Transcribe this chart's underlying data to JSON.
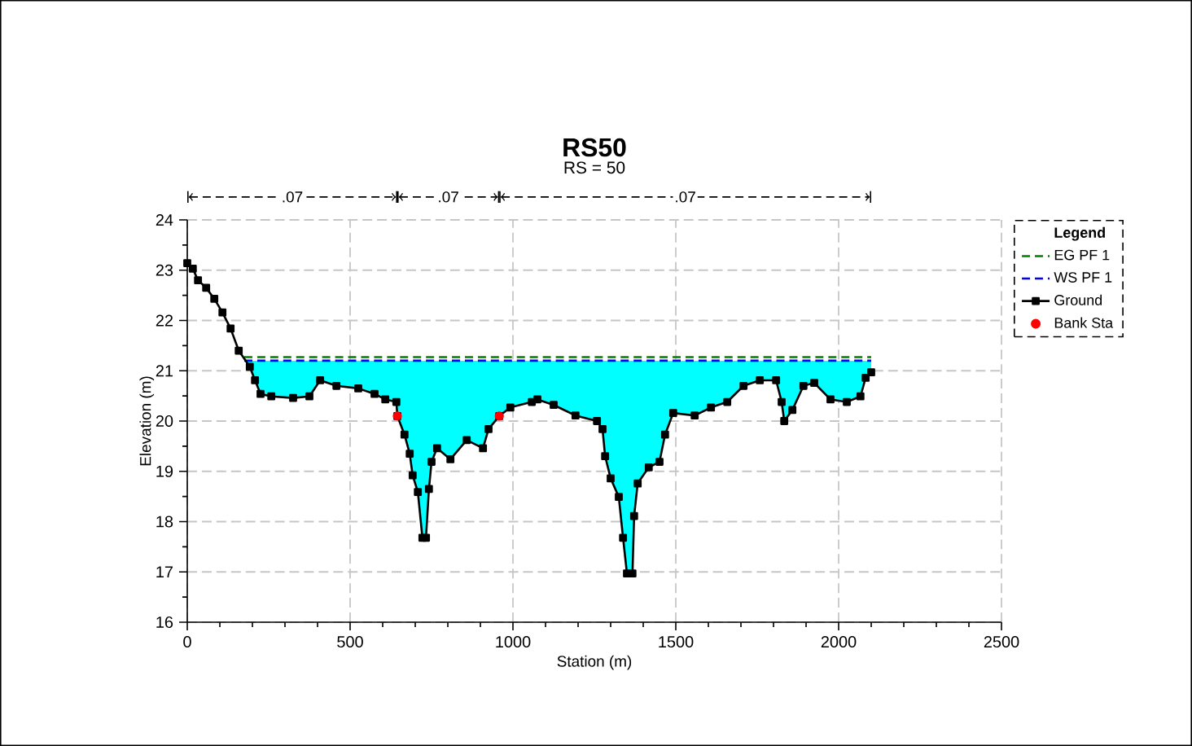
{
  "chart_data": {
    "type": "line",
    "title": "RS50",
    "xlabel": "Station (m)",
    "ylabel": "Elevation (m)",
    "legend_title": "Legend",
    "annotations": [
      ".07",
      ".07",
      ".07",
      "RS = 50"
    ],
    "xlim": [
      0,
      2500
    ],
    "ylim": [
      16,
      24
    ],
    "xticks": [
      0,
      500,
      1000,
      1500,
      2000,
      2500
    ],
    "yticks": [
      16,
      17,
      18,
      19,
      20,
      21,
      22,
      23,
      24
    ],
    "grid": true,
    "legend": "right",
    "series": [
      {
        "name": "EG  PF  1",
        "color": "#008000",
        "line_style": "dashed",
        "x": [
          175,
          2100
        ],
        "values": [
          21.27,
          21.27
        ]
      },
      {
        "name": "WS PF 1",
        "color": "#0000ff",
        "line_style": "dashed",
        "x": [
          175,
          192,
          208,
          225,
          258,
          325,
          375,
          408,
          458,
          525,
          575,
          608,
          642,
          645,
          667,
          683,
          692,
          708,
          722,
          733,
          742,
          750,
          767,
          808,
          858,
          908,
          925,
          958,
          992,
          1058,
          1075,
          1125,
          1192,
          1258,
          1275,
          1283,
          1300,
          1325,
          1338,
          1350,
          1367,
          1372,
          1383,
          1417,
          1450,
          1467,
          1492,
          1558,
          1608,
          1658,
          1708,
          1758,
          1808,
          1825,
          1833,
          1858,
          1892,
          1925,
          1975,
          2025,
          2067,
          2083,
          2100
        ],
        "values": [
          21.2,
          21.2,
          21.2,
          21.2,
          21.2,
          21.2,
          21.2,
          21.2,
          21.2,
          21.2,
          21.2,
          21.2,
          21.2,
          21.2,
          21.2,
          21.2,
          21.2,
          21.2,
          21.2,
          21.2,
          21.2,
          21.2,
          21.2,
          21.2,
          21.2,
          21.2,
          21.2,
          21.2,
          21.2,
          21.2,
          21.2,
          21.2,
          21.2,
          21.2,
          21.2,
          21.2,
          21.2,
          21.2,
          21.2,
          21.2,
          21.2,
          21.2,
          21.2,
          21.2,
          21.2,
          21.2,
          21.2,
          21.2,
          21.2,
          21.2,
          21.2,
          21.2,
          21.2,
          21.2,
          21.2,
          21.2,
          21.2,
          21.2,
          21.2,
          21.2,
          21.2,
          21.2,
          21.2
        ],
        "upper": [
          21.2,
          21.2,
          21.2,
          21.2,
          21.2,
          21.2,
          21.2,
          21.2,
          21.2,
          21.2,
          21.2,
          21.2,
          21.2,
          21.2,
          21.2,
          21.2,
          21.2,
          21.2,
          21.2,
          21.2,
          21.2,
          21.2,
          21.2,
          21.2,
          21.2,
          21.2,
          21.2,
          21.2,
          21.2,
          21.2,
          21.2,
          21.2,
          21.2,
          21.2,
          21.2,
          21.2,
          21.2,
          21.2,
          21.2,
          21.2,
          21.2,
          21.2,
          21.2,
          21.2,
          21.2,
          21.2,
          21.2,
          21.2,
          21.2,
          21.2,
          21.2,
          21.2,
          21.2,
          21.2,
          21.2,
          21.2,
          21.2,
          21.2,
          21.2,
          21.2,
          21.2,
          21.2,
          21.2
        ],
        "lower": [
          21.2,
          21.08,
          20.81,
          20.54,
          20.49,
          20.46,
          20.49,
          20.81,
          20.7,
          20.65,
          20.54,
          20.43,
          20.38,
          20.1,
          19.73,
          19.35,
          18.92,
          18.59,
          17.68,
          17.68,
          18.65,
          19.19,
          19.46,
          19.24,
          19.62,
          19.46,
          19.84,
          20.1,
          20.27,
          20.38,
          20.43,
          20.32,
          20.11,
          20.0,
          19.84,
          19.3,
          18.86,
          18.49,
          17.68,
          16.97,
          16.97,
          18.11,
          18.76,
          19.08,
          19.19,
          19.73,
          20.16,
          20.11,
          20.27,
          20.38,
          20.7,
          20.81,
          20.81,
          20.38,
          20.0,
          20.22,
          20.7,
          20.76,
          20.43,
          20.38,
          20.49,
          20.86,
          20.97
        ]
      },
      {
        "name": "Ground",
        "color": "#000000",
        "marker": "square",
        "line_style": "solid",
        "x": [
          0,
          17,
          33,
          58,
          83,
          108,
          133,
          158,
          192,
          208,
          225,
          258,
          325,
          375,
          408,
          458,
          525,
          575,
          608,
          642,
          645,
          667,
          683,
          692,
          708,
          722,
          733,
          742,
          750,
          767,
          808,
          858,
          908,
          925,
          958,
          992,
          1058,
          1075,
          1125,
          1192,
          1258,
          1275,
          1283,
          1300,
          1325,
          1338,
          1350,
          1367,
          1372,
          1383,
          1417,
          1450,
          1467,
          1492,
          1558,
          1608,
          1658,
          1708,
          1758,
          1808,
          1825,
          1833,
          1858,
          1892,
          1925,
          1975,
          2025,
          2067,
          2083,
          2100
        ],
        "values": [
          23.14,
          23.03,
          22.8,
          22.65,
          22.43,
          22.16,
          21.84,
          21.4,
          21.08,
          20.81,
          20.54,
          20.49,
          20.46,
          20.49,
          20.81,
          20.7,
          20.65,
          20.54,
          20.43,
          20.38,
          20.1,
          19.73,
          19.35,
          18.92,
          18.59,
          17.68,
          17.68,
          18.65,
          19.19,
          19.46,
          19.24,
          19.62,
          19.46,
          19.84,
          20.1,
          20.27,
          20.38,
          20.43,
          20.32,
          20.11,
          20.0,
          19.84,
          19.3,
          18.86,
          18.49,
          17.68,
          16.97,
          16.97,
          18.11,
          18.76,
          19.08,
          19.19,
          19.73,
          20.16,
          20.11,
          20.27,
          20.38,
          20.7,
          20.81,
          20.81,
          20.38,
          20.0,
          20.22,
          20.7,
          20.76,
          20.43,
          20.38,
          20.49,
          20.86,
          20.97
        ]
      },
      {
        "name": "Bank Sta",
        "type": "scatter",
        "color": "#ff0000",
        "marker": "circle",
        "x": [
          645,
          958
        ],
        "values": [
          20.1,
          20.1
        ]
      }
    ]
  }
}
